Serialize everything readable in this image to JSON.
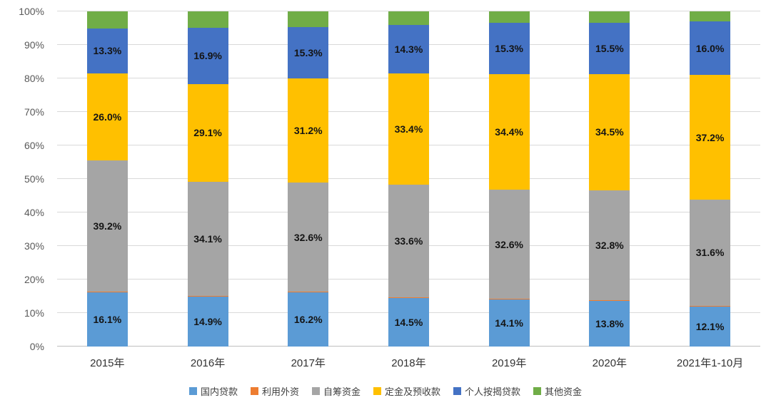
{
  "chart_data": {
    "type": "bar",
    "subtype": "stacked-100-percent",
    "title": "",
    "xlabel": "",
    "ylabel": "",
    "categories": [
      "2015年",
      "2016年",
      "2017年",
      "2018年",
      "2019年",
      "2020年",
      "2021年1-10月"
    ],
    "series": [
      {
        "name": "国内贷款",
        "color": "#5B9BD5",
        "show_labels": true,
        "values": [
          16.1,
          14.9,
          16.2,
          14.5,
          14.1,
          13.8,
          12.1
        ]
      },
      {
        "name": "利用外资",
        "color": "#ED7D31",
        "show_labels": false,
        "values": [
          0.3,
          0.2,
          0.1,
          0.1,
          0.1,
          0.1,
          0.1
        ]
      },
      {
        "name": "自筹资金",
        "color": "#A5A5A5",
        "show_labels": true,
        "values": [
          39.2,
          34.1,
          32.6,
          33.6,
          32.6,
          32.8,
          31.6
        ]
      },
      {
        "name": "定金及预收款",
        "color": "#FFC000",
        "show_labels": true,
        "values": [
          26.0,
          29.1,
          31.2,
          33.4,
          34.4,
          34.5,
          37.2
        ]
      },
      {
        "name": "个人按揭贷款",
        "color": "#4472C4",
        "show_labels": true,
        "values": [
          13.3,
          16.9,
          15.3,
          14.3,
          15.3,
          15.5,
          16.0
        ]
      },
      {
        "name": "其他资金",
        "color": "#70AD47",
        "show_labels": false,
        "values": [
          5.1,
          4.8,
          4.6,
          4.1,
          3.5,
          3.3,
          3.0
        ]
      }
    ],
    "y_axis": {
      "min": 0,
      "max": 100,
      "step": 10,
      "tick_labels": [
        "0%",
        "10%",
        "20%",
        "30%",
        "40%",
        "50%",
        "60%",
        "70%",
        "80%",
        "90%",
        "100%"
      ]
    },
    "label_format": "{value}%",
    "grid": true,
    "legend_position": "bottom"
  }
}
